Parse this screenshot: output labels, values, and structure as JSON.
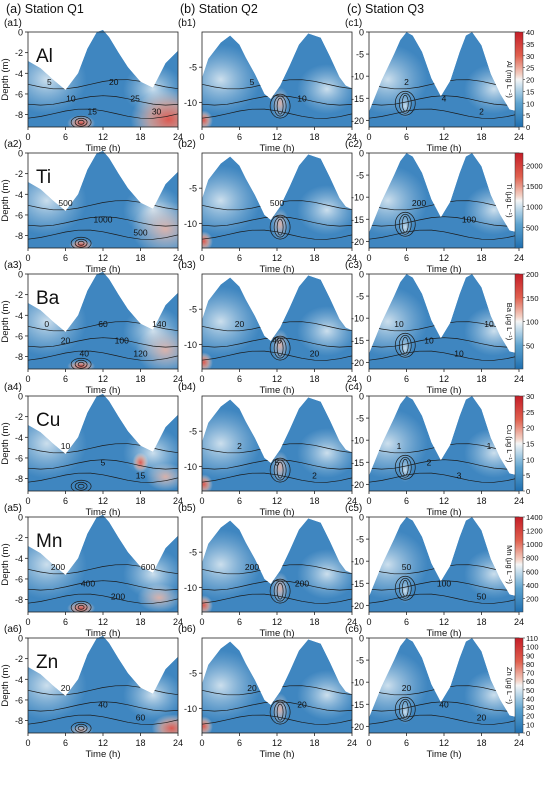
{
  "figure": {
    "station_titles": [
      "(a) Station Q1",
      "(b) Station Q2",
      "(c) Station Q3"
    ],
    "rows": [
      {
        "element": "Al",
        "panel_labels": [
          "(a1)",
          "(b1)",
          "(c1)"
        ],
        "colorbar": {
          "label": "Al (mg L⁻¹)",
          "ticks": [
            0,
            5,
            10,
            15,
            20,
            25,
            30,
            35,
            40
          ],
          "max": 40
        },
        "contour_labels": [
          [
            "5",
            "10",
            "15",
            "20",
            "25",
            "30"
          ],
          [
            "5",
            "10"
          ],
          [
            "2",
            "4",
            "2"
          ]
        ]
      },
      {
        "element": "Ti",
        "panel_labels": [
          "(a2)",
          "(b2)",
          "(c2)"
        ],
        "colorbar": {
          "label": "Ti (μg L⁻¹)",
          "ticks": [
            500,
            1000,
            1500,
            2000
          ],
          "max": 2300
        },
        "contour_labels": [
          [
            "500",
            "1000",
            "500"
          ],
          [
            "500"
          ],
          [
            "200",
            "100"
          ]
        ]
      },
      {
        "element": "Ba",
        "panel_labels": [
          "(a3)",
          "(b3)",
          "(c3)"
        ],
        "colorbar": {
          "label": "Ba (μg L⁻¹)",
          "ticks": [
            50,
            100,
            150,
            200
          ],
          "max": 200
        },
        "contour_labels": [
          [
            "0",
            "20",
            "40",
            "60",
            "100",
            "120",
            "140"
          ],
          [
            "20",
            "40",
            "20"
          ],
          [
            "10",
            "10",
            "10",
            "10"
          ]
        ]
      },
      {
        "element": "Cu",
        "panel_labels": [
          "(a4)",
          "(b4)",
          "(c4)"
        ],
        "colorbar": {
          "label": "Cu (μg L⁻¹)",
          "ticks": [
            0,
            5,
            10,
            15,
            20,
            25,
            30
          ],
          "max": 30
        },
        "contour_labels": [
          [
            "10",
            "5",
            "15"
          ],
          [
            "2",
            "5",
            "2"
          ],
          [
            "1",
            "2",
            "3",
            "1"
          ]
        ]
      },
      {
        "element": "Mn",
        "panel_labels": [
          "(a5)",
          "(b5)",
          "(c5)"
        ],
        "colorbar": {
          "label": "Mn (μg L⁻¹)",
          "ticks": [
            200,
            400,
            600,
            800,
            1000,
            1200,
            1400
          ],
          "max": 1400
        },
        "contour_labels": [
          [
            "200",
            "400",
            "200",
            "600"
          ],
          [
            "200",
            "200"
          ],
          [
            "50",
            "100",
            "50"
          ]
        ]
      },
      {
        "element": "Zn",
        "panel_labels": [
          "(a6)",
          "(b6)",
          "(c6)"
        ],
        "colorbar": {
          "label": "Zn (μg L⁻¹)",
          "ticks": [
            0,
            10,
            20,
            30,
            40,
            50,
            60,
            70,
            80,
            90,
            100,
            110
          ],
          "max": 110
        },
        "contour_labels": [
          [
            "20",
            "40",
            "60"
          ],
          [
            "20",
            "20"
          ],
          [
            "20",
            "40",
            "20"
          ]
        ]
      }
    ]
  },
  "chart_data": {
    "type": "heatmap",
    "xlabel": "Time (h)",
    "ylabel": "Depth (m)",
    "x_ticks": [
      0,
      6,
      12,
      18,
      24
    ],
    "xlim": [
      0,
      24
    ],
    "stations": [
      {
        "name": "Station Q1",
        "ylim": [
          -9.2,
          0
        ],
        "y_ticks": [
          0,
          -2,
          -4,
          -6,
          -8
        ],
        "surface": {
          "x": [
            0,
            2,
            4,
            6,
            8,
            9.5,
            11,
            12,
            13,
            14.5,
            16,
            18,
            20,
            22,
            24
          ],
          "y": [
            -2.8,
            -3.5,
            -4.6,
            -5.6,
            -4.0,
            -1.6,
            0,
            0.2,
            -0.5,
            -2.0,
            -3.4,
            -4.8,
            -5.4,
            -3.0,
            -1.8
          ]
        },
        "bottom": -9.2
      },
      {
        "name": "Station Q2",
        "ylim": [
          -13.5,
          0
        ],
        "y_ticks": [
          -5,
          -10
        ],
        "surface": {
          "x": [
            0,
            1,
            3,
            4.5,
            6,
            7,
            8.5,
            10,
            11,
            12.5,
            14,
            15.5,
            17,
            19,
            20.5,
            22,
            23,
            24
          ],
          "y": [
            -6.5,
            -3.8,
            -1.5,
            -0.5,
            -1.8,
            -3.6,
            -6.0,
            -8.8,
            -9.5,
            -7.6,
            -4.8,
            -1.8,
            -0.2,
            -0.8,
            -3.5,
            -6.4,
            -7.6,
            -8.0
          ]
        },
        "bottom": -13.5
      },
      {
        "name": "Station Q3",
        "ylim": [
          -21.5,
          0
        ],
        "y_ticks": [
          0,
          -5,
          -10,
          -15,
          -20
        ],
        "surface": {
          "x": [
            0,
            2,
            4,
            5,
            6,
            7,
            8.5,
            10,
            11.5,
            13,
            14.5,
            15.5,
            16.5,
            18,
            19.5,
            21,
            22.5,
            24
          ],
          "y": [
            -18.0,
            -11.0,
            -5.0,
            -1.8,
            0,
            -0.8,
            -4.5,
            -10.5,
            -14.5,
            -11.0,
            -4.5,
            -0.8,
            0,
            -3.0,
            -9.5,
            -14.0,
            -17.5,
            -18.0
          ]
        },
        "bottom": -21.5
      }
    ]
  }
}
